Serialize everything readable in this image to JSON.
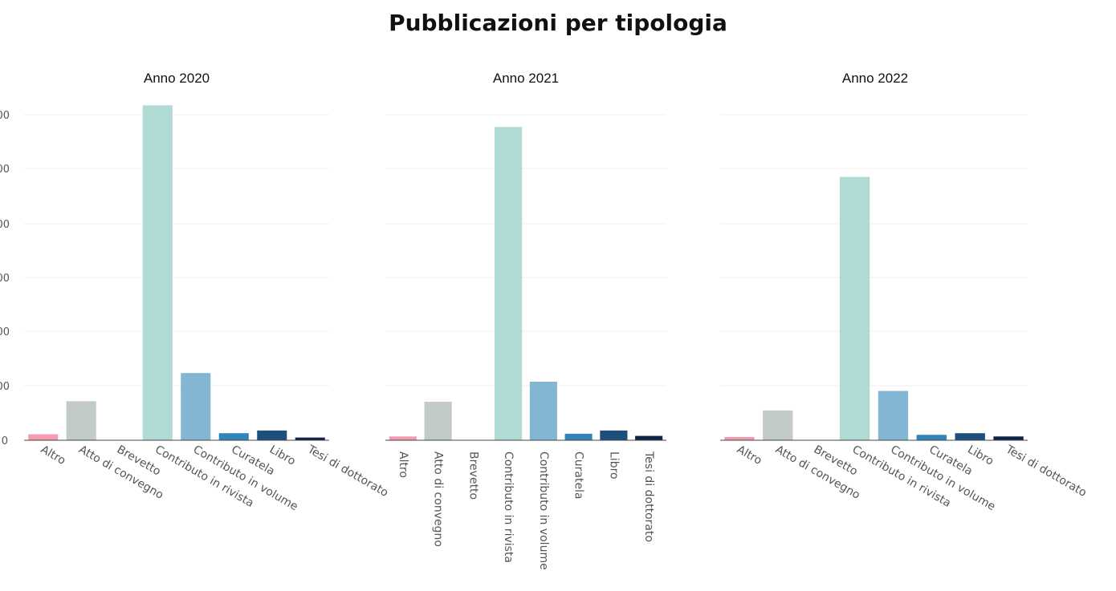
{
  "title": "Pubblicazioni per tipologia",
  "colors": {
    "Altro": "#f49bb0",
    "Atto di convegno": "#c3cbc6",
    "Brevetto": "#9a9a9a",
    "Contributo in rivista": "#b0dad4",
    "Contributo in volume": "#83b6d3",
    "Curatela": "#2f86bb",
    "Libro": "#1d4f7d",
    "Tesi di dottorato": "#0d2545"
  },
  "y_tick_labels": [
    "0",
    "00",
    "00",
    "00",
    "00",
    "00",
    "00"
  ],
  "chart_data": [
    {
      "type": "bar",
      "title": "Anno 2020",
      "categories": [
        "Altro",
        "Atto di convegno",
        "Brevetto",
        "Contributo in rivista",
        "Contributo in volume",
        "Curatela",
        "Libro",
        "Tesi di dottorato"
      ],
      "values": [
        11,
        72,
        0,
        618,
        124,
        13,
        18,
        5
      ],
      "ylim": [
        0,
        620
      ],
      "grid": true
    },
    {
      "type": "bar",
      "title": "Anno 2021",
      "categories": [
        "Altro",
        "Atto di convegno",
        "Brevetto",
        "Contributo in rivista",
        "Contributo in volume",
        "Curatela",
        "Libro",
        "Tesi di dottorato"
      ],
      "values": [
        7,
        71,
        0,
        578,
        108,
        12,
        18,
        8
      ],
      "ylim": [
        0,
        620
      ],
      "grid": true
    },
    {
      "type": "bar",
      "title": "Anno 2022",
      "categories": [
        "Altro",
        "Atto di convegno",
        "Brevetto",
        "Contributo in rivista",
        "Contributo in volume",
        "Curatela",
        "Libro",
        "Tesi di dottorato"
      ],
      "values": [
        6,
        55,
        0,
        486,
        91,
        10,
        13,
        7
      ],
      "ylim": [
        0,
        620
      ],
      "grid": true
    }
  ]
}
